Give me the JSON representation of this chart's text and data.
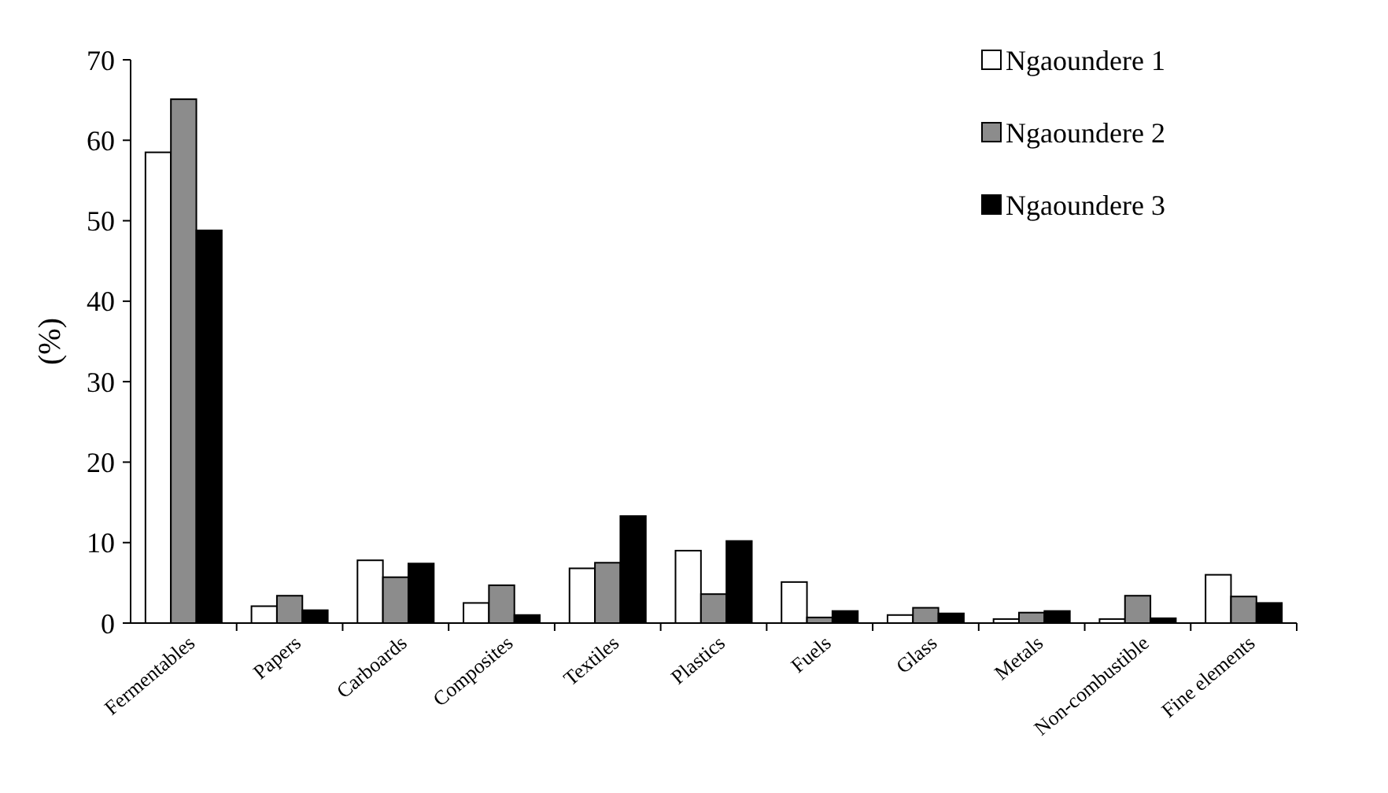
{
  "chart_data": {
    "type": "bar",
    "ylabel": "(%)",
    "categories": [
      "Fermentables",
      "Papers",
      "Carboards",
      "Composites",
      "Textiles",
      "Plastics",
      "Fuels",
      "Glass",
      "Metals",
      "Non-combustible",
      "Fine elements"
    ],
    "series": [
      {
        "name": "Ngaoundere 1",
        "color": "#ffffff",
        "values": [
          58.5,
          2.1,
          7.8,
          2.5,
          6.8,
          9.0,
          5.1,
          1.0,
          0.5,
          0.5,
          6.0
        ]
      },
      {
        "name": "Ngaoundere 2",
        "color": "#8c8c8c",
        "values": [
          65.1,
          3.4,
          5.7,
          4.7,
          7.5,
          3.6,
          0.7,
          1.9,
          1.3,
          3.4,
          3.3
        ]
      },
      {
        "name": "Ngaoundere 3",
        "color": "#000000",
        "values": [
          48.8,
          1.6,
          7.4,
          1.0,
          13.3,
          10.2,
          1.5,
          1.2,
          1.5,
          0.6,
          2.5
        ]
      }
    ],
    "ylim": [
      0,
      70
    ],
    "yticks": [
      0,
      10,
      20,
      30,
      40,
      50,
      60,
      70
    ],
    "grid": false,
    "legend": "top right"
  }
}
